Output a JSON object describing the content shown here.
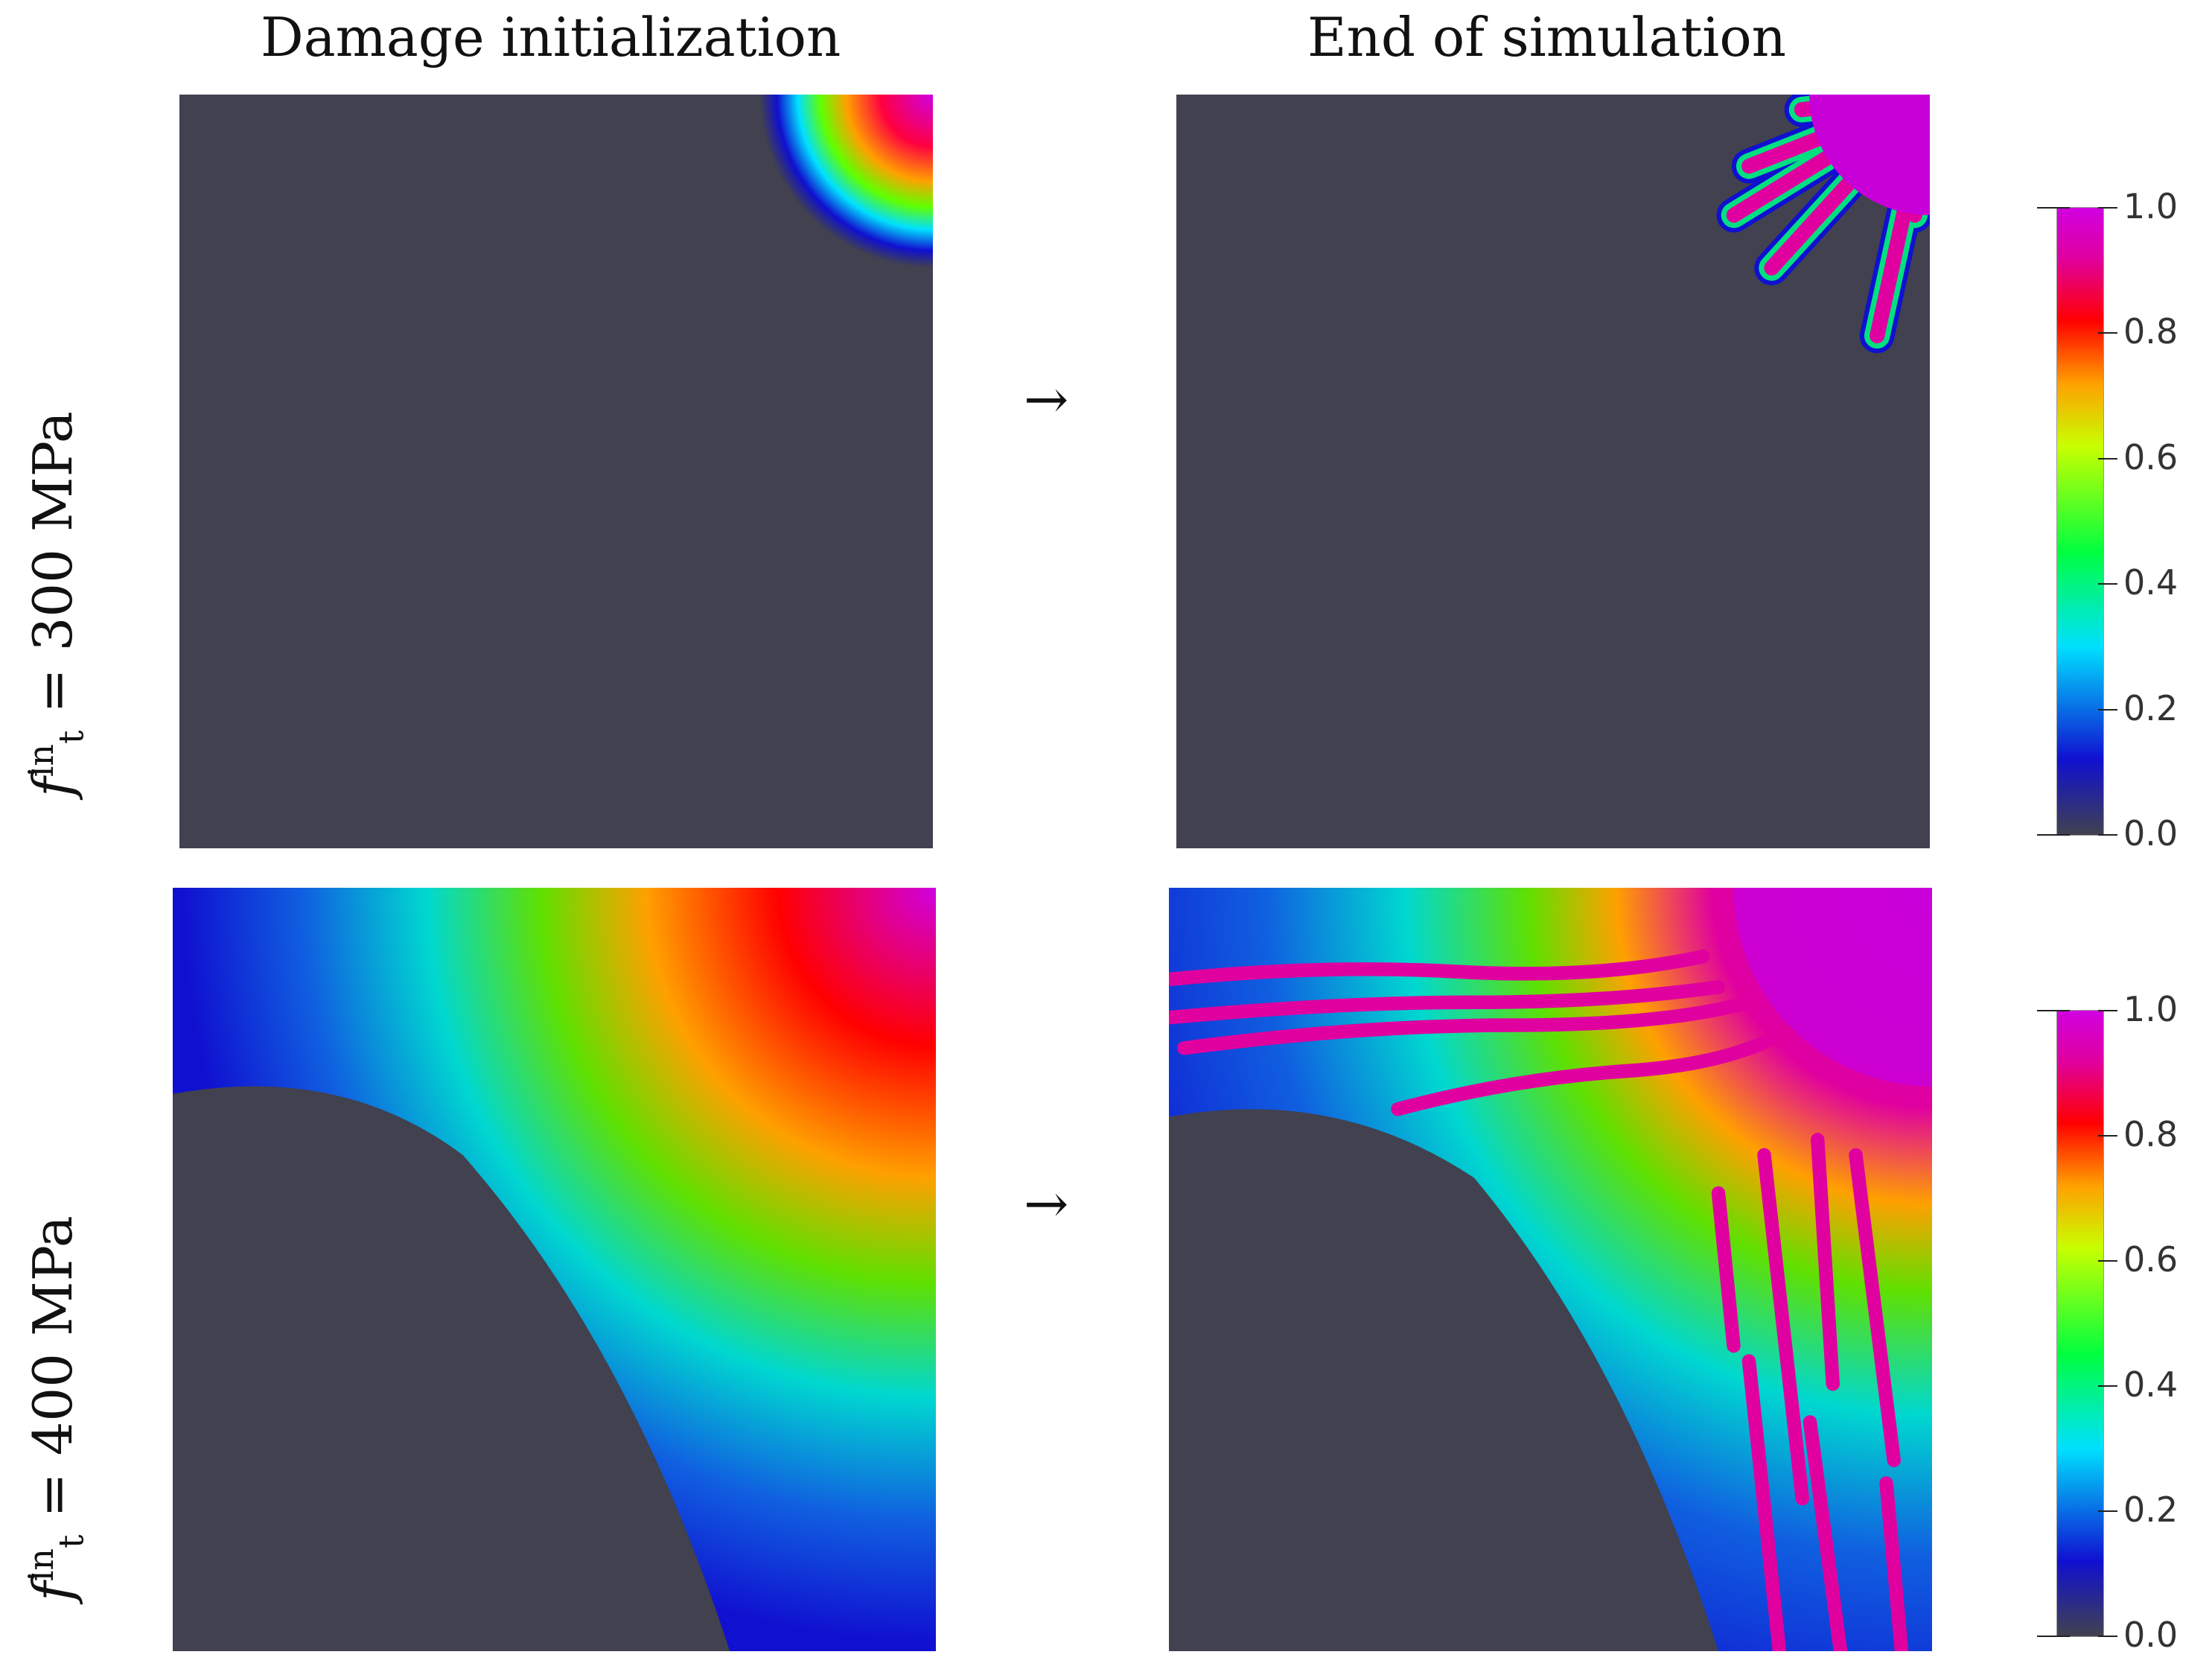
{
  "columns": [
    "Damage initialization",
    "End of simulation"
  ],
  "rows": [
    {
      "symbol": "f",
      "sup": "in",
      "sub": "t",
      "rest": " = 300 MPa"
    },
    {
      "symbol": "f",
      "sup": "in",
      "sub": "t",
      "rest": " = 400 MPa"
    }
  ],
  "arrow": "→",
  "colorbar": {
    "ticks": [
      "1.0",
      "0.8",
      "0.6",
      "0.4",
      "0.2",
      "0.0"
    ],
    "colors": [
      "#41414f",
      "#1010d0",
      "#00e0ff",
      "#00ff40",
      "#c8ff00",
      "#ffa000",
      "#ff0000",
      "#e000a0",
      "#d000e0"
    ]
  },
  "background_color": "#41414f"
}
